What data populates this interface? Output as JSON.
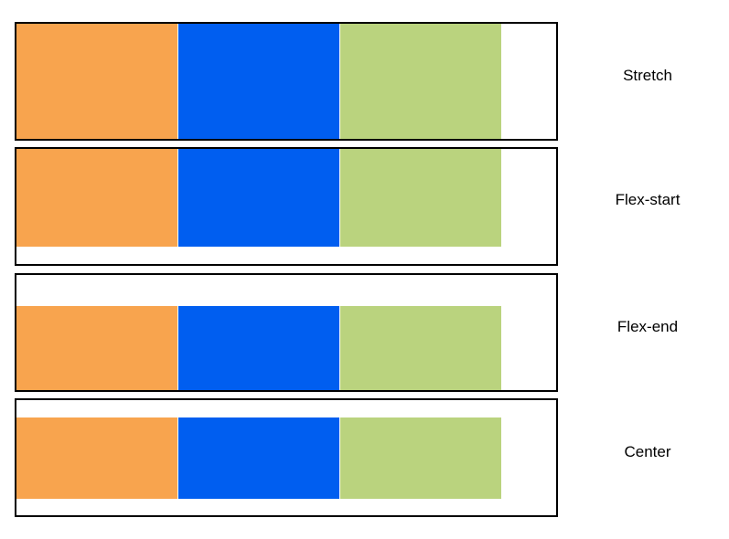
{
  "rows": [
    {
      "label": "Stretch"
    },
    {
      "label": "Flex-start"
    },
    {
      "label": "Flex-end"
    },
    {
      "label": "Center"
    }
  ],
  "colors": {
    "item_1": "#f8a44e",
    "item_2": "#005ef0",
    "item_3": "#bad37e",
    "border": "#000000"
  }
}
